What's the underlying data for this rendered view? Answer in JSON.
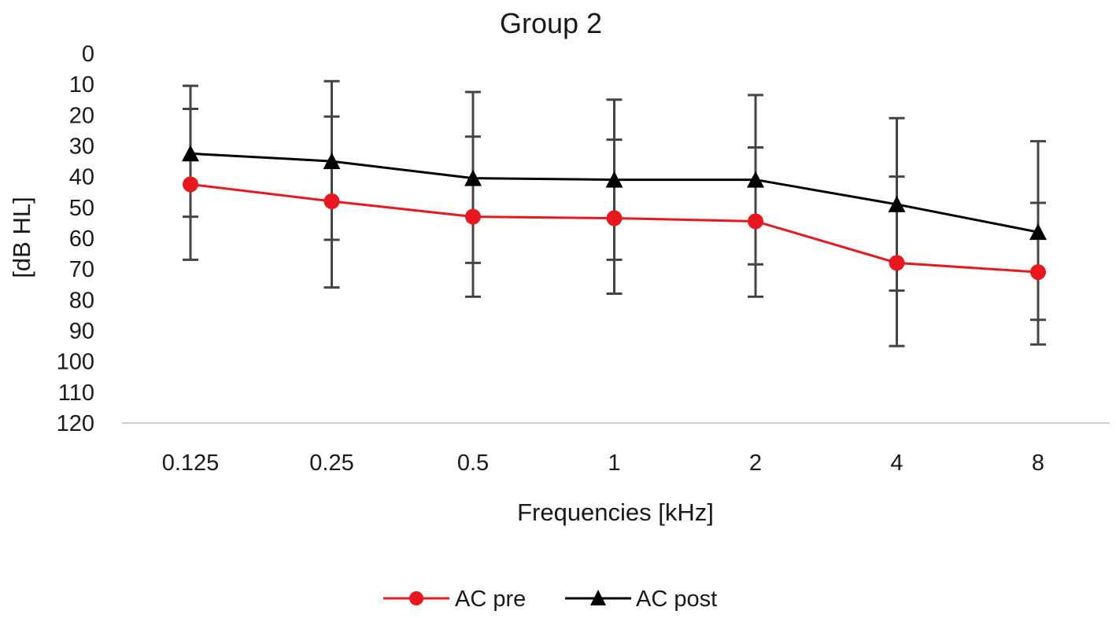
{
  "chart_data": {
    "type": "line",
    "title": "Group 2",
    "xlabel": "Frequencies [kHz]",
    "ylabel": "[dB HL]",
    "categories": [
      "0.125",
      "0.25",
      "0.5",
      "1",
      "2",
      "4",
      "8"
    ],
    "yticks": [
      "0",
      "10",
      "20",
      "30",
      "40",
      "50",
      "60",
      "70",
      "80",
      "90",
      "100",
      "110",
      "120"
    ],
    "ylim": [
      0,
      120
    ],
    "y_inverted": true,
    "grid": false,
    "legend_position": "bottom",
    "series": [
      {
        "name": "AC pre",
        "color": "#e8191e",
        "marker": "circle",
        "values": [
          42.5,
          48,
          53,
          53.5,
          54.5,
          68,
          71
        ],
        "error_low": [
          53,
          60.5,
          68,
          67,
          68.5,
          77,
          86.5
        ],
        "error_high": [
          18,
          20.5,
          27,
          28,
          30.5,
          40,
          48.5
        ],
        "error_low_cap": [
          67,
          76,
          79,
          78,
          79,
          95,
          94.5
        ],
        "error_high_cap": [
          10.5,
          9,
          12.5,
          15,
          13.5,
          21,
          28.5
        ]
      },
      {
        "name": "AC post",
        "color": "#000000",
        "marker": "triangle",
        "values": [
          32.5,
          35,
          40.5,
          41,
          41,
          49,
          58
        ]
      }
    ]
  }
}
